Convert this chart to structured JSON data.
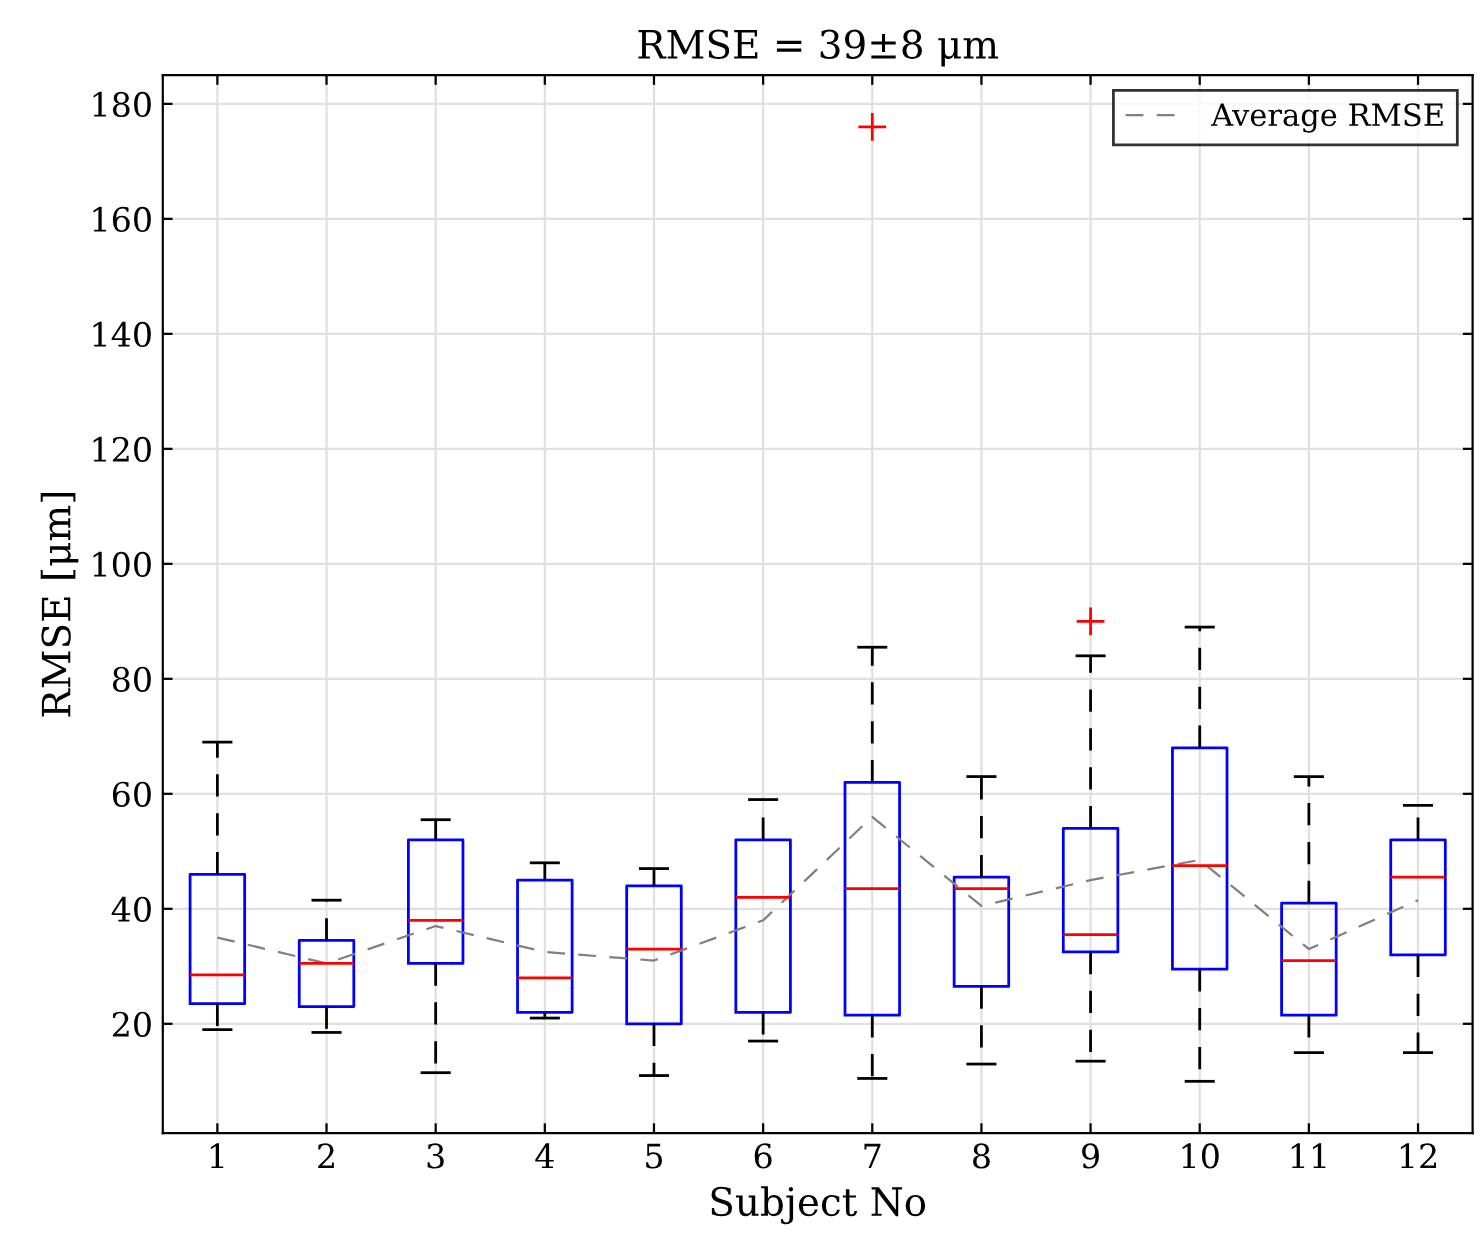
{
  "chart_data": {
    "type": "box",
    "title": "RMSE = 39±8 μm",
    "xlabel": "Subject No",
    "ylabel": "RMSE [μm]",
    "categories": [
      "1",
      "2",
      "3",
      "4",
      "5",
      "6",
      "7",
      "8",
      "9",
      "10",
      "11",
      "12"
    ],
    "ylim": [
      1,
      185
    ],
    "yticks": [
      20,
      40,
      60,
      80,
      100,
      120,
      140,
      160,
      180
    ],
    "grid": true,
    "legend": "top right",
    "series": [
      {
        "color": "#0000ff",
        "boxes": [
          {
            "low": 19,
            "q1": 23.5,
            "median": 28.5,
            "q3": 46,
            "high": 69
          },
          {
            "low": 18.5,
            "q1": 23,
            "median": 30.5,
            "q3": 34.5,
            "high": 41.5
          },
          {
            "low": 11.5,
            "q1": 30.5,
            "median": 38,
            "q3": 52,
            "high": 55.5
          },
          {
            "low": 21,
            "q1": 22,
            "median": 28,
            "q3": 45,
            "high": 48
          },
          {
            "low": 11,
            "q1": 20,
            "median": 33,
            "q3": 44,
            "high": 47
          },
          {
            "low": 17,
            "q1": 22,
            "median": 42,
            "q3": 52,
            "high": 59
          },
          {
            "low": 10.5,
            "q1": 21.5,
            "median": 43.5,
            "q3": 62,
            "high": 85.5,
            "outliers": [
              176
            ]
          },
          {
            "low": 13,
            "q1": 26.5,
            "median": 43.5,
            "q3": 45.5,
            "high": 63
          },
          {
            "low": 13.5,
            "q1": 32.5,
            "median": 35.5,
            "q3": 54,
            "high": 84,
            "outliers": [
              90
            ]
          },
          {
            "low": 10,
            "q1": 29.5,
            "median": 47.5,
            "q3": 68,
            "high": 89
          },
          {
            "low": 15,
            "q1": 21.5,
            "median": 31,
            "q3": 41,
            "high": 63
          },
          {
            "low": 15,
            "q1": 32,
            "median": 45.5,
            "q3": 52,
            "high": 58
          }
        ]
      },
      {
        "type": "line",
        "name": "Average RMSE",
        "color": "#808080",
        "line_style": "dashed",
        "marker": "none",
        "values": [
          35,
          30.5,
          37,
          32.5,
          31,
          38,
          56,
          40.5,
          45,
          48.5,
          33,
          41.5
        ]
      }
    ]
  }
}
